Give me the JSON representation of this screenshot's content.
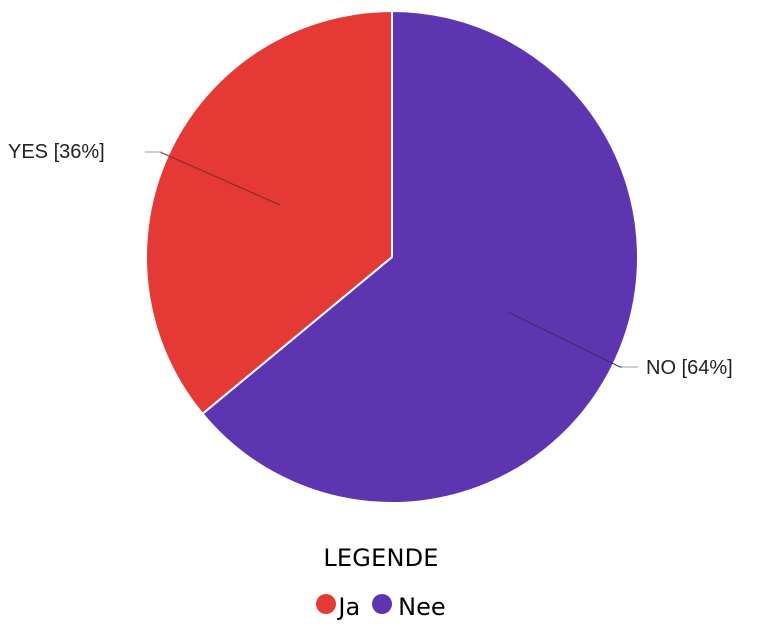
{
  "chart_data": {
    "type": "pie",
    "categories": [
      "YES",
      "NO"
    ],
    "values": [
      36,
      64
    ],
    "slice_labels": [
      "YES [36%]",
      "NO [64%]"
    ],
    "colors": [
      "#e53935",
      "#5e35b1"
    ],
    "legend": {
      "title": "LEGENDE",
      "position": "bottom",
      "entries": [
        {
          "label": "Ja",
          "color": "#e53935"
        },
        {
          "label": "Nee",
          "color": "#5e35b1"
        }
      ]
    }
  }
}
